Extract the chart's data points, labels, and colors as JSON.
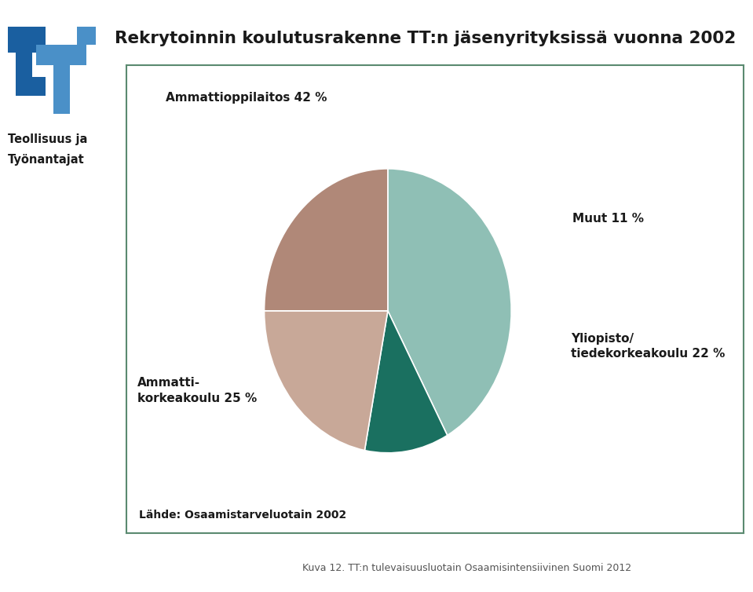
{
  "title": "Rekrytoinnin koulutusrakenne TT:n jäsenyrityksissä vuonna 2002",
  "slices": [
    42,
    11,
    22,
    25
  ],
  "colors": [
    "#8fbfb5",
    "#1a7060",
    "#c8a898",
    "#b08878"
  ],
  "source_text": "Lähde: Osaamistarveluotain 2002",
  "caption": "Kuva 12. TT:n tulevaisuusluotain Osaamisintensiivinen Suomi 2012",
  "logo_text_line1": "Teollisuus ja",
  "logo_text_line2": "Työnantajat",
  "start_angle": 90,
  "background_color": "#ffffff",
  "box_border_color": "#5a8a70",
  "title_color": "#1a1a1a",
  "label_fontsize": 11,
  "title_fontsize": 16,
  "source_fontsize": 10,
  "caption_fontsize": 9,
  "tt_blue_dark": "#1a5fa0",
  "tt_blue_light": "#4a90c8"
}
